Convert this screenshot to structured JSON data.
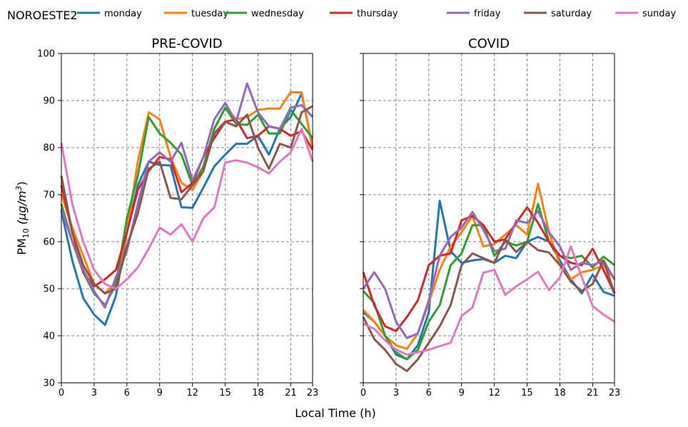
{
  "figure": {
    "site": "NOROESTE2",
    "xlabel": "Local Time (h)",
    "ylabel_main": "PM",
    "ylabel_sub": "10",
    "ylabel_unit": " (μg/m",
    "ylabel_sup": "3",
    "ylabel_close": ")"
  },
  "legend": {
    "placement": "top",
    "entries": [
      {
        "name": "monday",
        "color": "#1f77b4"
      },
      {
        "name": "tuesday",
        "color": "#ff7f0e"
      },
      {
        "name": "wednesday",
        "color": "#2ca02c"
      },
      {
        "name": "thursday",
        "color": "#d62728"
      },
      {
        "name": "friday",
        "color": "#9467bd"
      },
      {
        "name": "saturday",
        "color": "#8c564b"
      },
      {
        "name": "sunday",
        "color": "#e377c2"
      }
    ]
  },
  "chart_data": [
    {
      "type": "line",
      "title": "PRE-COVID",
      "xlim": [
        0,
        23
      ],
      "ylim": [
        30,
        100
      ],
      "xticks": [
        0,
        3,
        6,
        9,
        12,
        15,
        18,
        21,
        23
      ],
      "yticks": [
        30,
        40,
        50,
        60,
        70,
        80,
        90,
        100
      ],
      "grid": true,
      "x": [
        0,
        1,
        2,
        3,
        4,
        5,
        6,
        7,
        8,
        9,
        10,
        11,
        12,
        13,
        14,
        15,
        16,
        17,
        18,
        19,
        20,
        21,
        22,
        23
      ],
      "series": [
        {
          "name": "monday",
          "color": "#1f77b4",
          "values": [
            66.5,
            56,
            48,
            44.5,
            42.3,
            48.5,
            62,
            72,
            77,
            76.3,
            76.2,
            67.3,
            67.2,
            71.5,
            76,
            78.5,
            80.8,
            80.8,
            82.5,
            78.5,
            84,
            86.5,
            91.5,
            80
          ]
        },
        {
          "name": "tuesday",
          "color": "#ff7f0e",
          "values": [
            70,
            63,
            57,
            51,
            49,
            51.5,
            62,
            77,
            87.5,
            86,
            78,
            72.5,
            71,
            75,
            84,
            88.5,
            86,
            86.5,
            88,
            88.3,
            88.3,
            91.8,
            91.7,
            80
          ]
        },
        {
          "name": "wednesday",
          "color": "#2ca02c",
          "values": [
            68,
            60,
            53.5,
            49,
            46.5,
            51,
            65,
            74,
            86.5,
            83,
            81,
            78.5,
            72,
            76,
            84,
            88.5,
            85,
            84.8,
            87,
            83,
            83,
            88,
            85,
            82
          ]
        },
        {
          "name": "thursday",
          "color": "#d62728",
          "values": [
            72,
            62,
            53.5,
            50.5,
            52,
            54,
            62,
            71,
            75,
            78,
            77.5,
            70.5,
            72.5,
            78,
            82,
            85.5,
            86,
            82,
            82.5,
            84.5,
            84,
            82.5,
            83.5,
            79.5
          ]
        },
        {
          "name": "friday",
          "color": "#9467bd",
          "values": [
            67,
            60,
            54,
            49.5,
            46,
            52.5,
            58,
            68,
            77,
            79,
            77,
            81,
            73,
            78,
            86,
            89.5,
            85.5,
            93.6,
            87.5,
            84.5,
            84,
            88.5,
            89,
            86.5
          ]
        },
        {
          "name": "saturday",
          "color": "#8c564b",
          "values": [
            74,
            62,
            55,
            51,
            49,
            50,
            59,
            66,
            75.5,
            77,
            69.3,
            69,
            72,
            75,
            83,
            85.5,
            84.5,
            87,
            80,
            75.5,
            80.8,
            80,
            87.5,
            88.8
          ]
        },
        {
          "name": "sunday",
          "color": "#e377c2",
          "values": [
            81,
            68,
            60,
            54,
            51,
            50,
            52,
            54.5,
            58.5,
            63,
            61.5,
            63.7,
            60,
            65,
            67.3,
            76.8,
            77.3,
            76.8,
            75.8,
            74.5,
            77,
            79,
            84,
            77
          ]
        }
      ]
    },
    {
      "type": "line",
      "title": "COVID",
      "xlim": [
        0,
        23
      ],
      "ylim": [
        30,
        100
      ],
      "xticks": [
        0,
        3,
        6,
        9,
        12,
        15,
        18,
        21,
        23
      ],
      "yticks": [
        30,
        40,
        50,
        60,
        70,
        80,
        90,
        100
      ],
      "grid": true,
      "x": [
        0,
        1,
        2,
        3,
        4,
        5,
        6,
        7,
        8,
        9,
        10,
        11,
        12,
        13,
        14,
        15,
        16,
        17,
        18,
        19,
        20,
        21,
        22,
        23
      ],
      "series": [
        {
          "name": "monday",
          "color": "#1f77b4",
          "values": [
            45,
            43,
            40,
            36,
            35,
            38,
            45,
            68.7,
            58,
            55.5,
            56,
            56.3,
            55.5,
            57,
            56.5,
            60,
            61,
            60,
            56,
            52,
            49,
            53,
            49.3,
            48.5
          ]
        },
        {
          "name": "tuesday",
          "color": "#ff7f0e",
          "values": [
            45.5,
            43,
            40,
            38,
            37.2,
            40.5,
            47,
            54,
            59,
            62,
            65.5,
            59,
            59.5,
            61.5,
            63.5,
            61.5,
            72.3,
            62,
            55,
            52,
            53.5,
            54,
            55,
            52
          ]
        },
        {
          "name": "wednesday",
          "color": "#2ca02c",
          "values": [
            49.5,
            47,
            40,
            36.5,
            35,
            37,
            43,
            46.5,
            55,
            57.5,
            63.5,
            63.5,
            57,
            60,
            59.2,
            60,
            68,
            60,
            57,
            56.5,
            57,
            54.5,
            56.8,
            55
          ]
        },
        {
          "name": "thursday",
          "color": "#d62728",
          "values": [
            53.5,
            46.5,
            42,
            41,
            44,
            47.5,
            55,
            57,
            57.5,
            64.5,
            65.5,
            63.5,
            60,
            60.5,
            64,
            67.3,
            64,
            60,
            57,
            55.5,
            55,
            58.5,
            54,
            49
          ]
        },
        {
          "name": "friday",
          "color": "#9467bd",
          "values": [
            50,
            53.5,
            50,
            43,
            39.5,
            40.5,
            47.5,
            57,
            61,
            63,
            66.3,
            62.5,
            58,
            58.5,
            64.5,
            64,
            66.5,
            62,
            59,
            54,
            55.5,
            55,
            56,
            52
          ]
        },
        {
          "name": "saturday",
          "color": "#8c564b",
          "values": [
            44,
            39.3,
            37,
            34,
            32.5,
            35,
            38.5,
            42,
            46.5,
            55,
            57.5,
            56.5,
            55.5,
            60.5,
            57.8,
            60,
            58.2,
            57.7,
            55,
            51.5,
            49.5,
            51,
            56,
            49
          ]
        },
        {
          "name": "sunday",
          "color": "#e377c2",
          "values": [
            42.5,
            41.5,
            39,
            37,
            36,
            36.5,
            37,
            37.8,
            38.5,
            44.2,
            46,
            53.4,
            54,
            48.7,
            50.5,
            52,
            53.6,
            49.7,
            52.4,
            59,
            52.5,
            46.3,
            44.5,
            43
          ]
        }
      ]
    }
  ]
}
